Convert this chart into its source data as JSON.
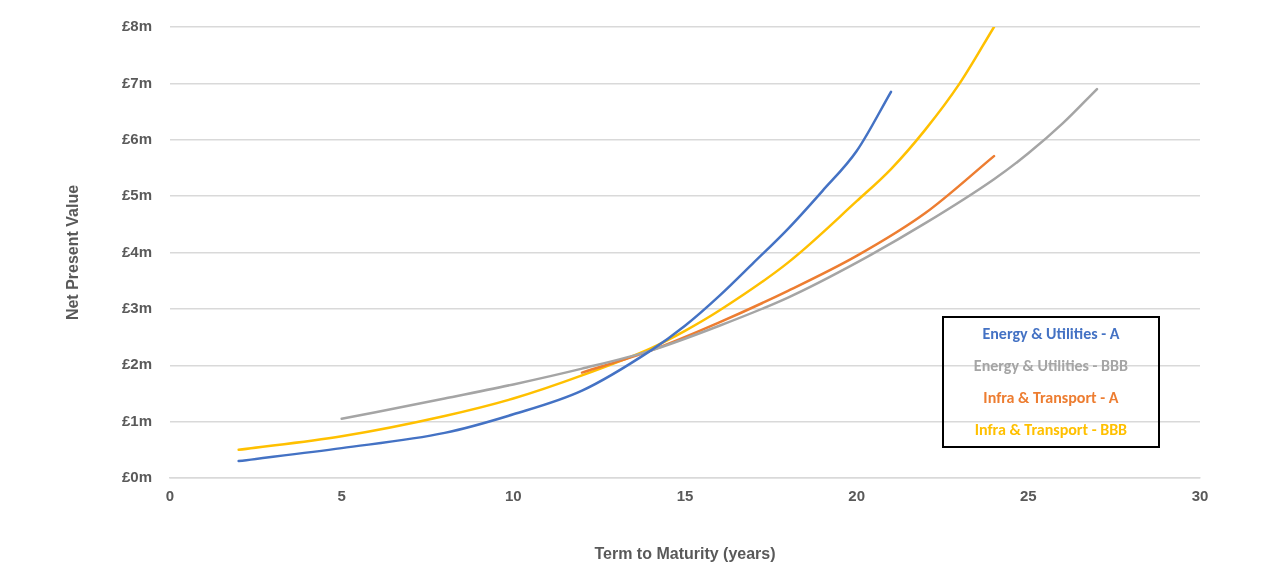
{
  "chart_data": {
    "type": "line",
    "xlabel": "Term to Maturity (years)",
    "ylabel": "Net Present Value",
    "xlim": [
      0,
      30
    ],
    "xticks": [
      0,
      5,
      10,
      15,
      20,
      25,
      30
    ],
    "ylim": [
      0,
      8
    ],
    "yticks": [
      {
        "value": 0,
        "label": "£0m"
      },
      {
        "value": 1,
        "label": "£1m"
      },
      {
        "value": 2,
        "label": "£2m"
      },
      {
        "value": 3,
        "label": "£3m"
      },
      {
        "value": 4,
        "label": "£4m"
      },
      {
        "value": 5,
        "label": "£5m"
      },
      {
        "value": 6,
        "label": "£6m"
      },
      {
        "value": 7,
        "label": "£7m"
      },
      {
        "value": 8,
        "label": "£8m"
      }
    ],
    "grid": "y",
    "legend": "right",
    "marker": "none",
    "line_style": "solid",
    "series": [
      {
        "name": "Energy & Utilities - A",
        "color": "#4472c4",
        "x": [
          2,
          5,
          8,
          10,
          12,
          14,
          15,
          16,
          17,
          18,
          19,
          20,
          21
        ],
        "values": [
          0.3,
          0.53,
          0.8,
          1.13,
          1.55,
          2.26,
          2.7,
          3.23,
          3.82,
          4.42,
          5.09,
          5.8,
          6.85
        ]
      },
      {
        "name": "Energy & Utilities - BBB",
        "color": "#a5a5a5",
        "x": [
          5,
          8,
          10,
          12,
          14,
          16,
          18,
          20,
          22,
          24,
          25,
          26,
          27
        ],
        "values": [
          1.05,
          1.41,
          1.66,
          1.94,
          2.26,
          2.7,
          3.2,
          3.82,
          4.52,
          5.3,
          5.76,
          6.29,
          6.9
        ]
      },
      {
        "name": "Infra & Transport - A",
        "color": "#ed7d31",
        "x": [
          12,
          14,
          16,
          18,
          20,
          22,
          24
        ],
        "values": [
          1.87,
          2.26,
          2.76,
          3.32,
          3.94,
          4.7,
          5.71
        ]
      },
      {
        "name": "Infra & Transport - BBB",
        "color": "#ffc000",
        "x": [
          2,
          5,
          8,
          10,
          12,
          14,
          15,
          16,
          18,
          20,
          21,
          22,
          23,
          24
        ],
        "values": [
          0.5,
          0.74,
          1.1,
          1.41,
          1.82,
          2.3,
          2.61,
          2.97,
          3.82,
          4.91,
          5.48,
          6.18,
          7.0,
          8.0
        ]
      }
    ]
  }
}
